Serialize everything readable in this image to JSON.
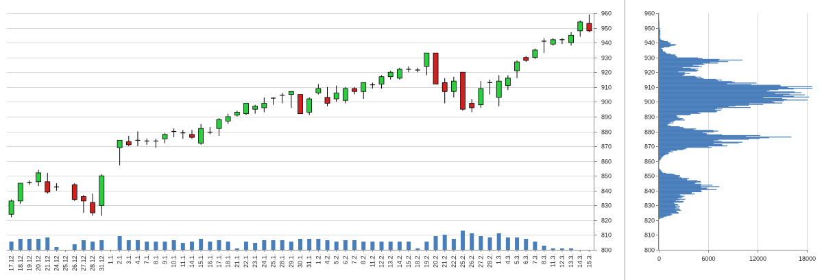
{
  "chart_data": [
    {
      "type": "candlestick",
      "ylim": [
        800,
        960
      ],
      "yticks": [
        "800",
        "810",
        "820",
        "830",
        "840",
        "850",
        "860",
        "870",
        "880",
        "890",
        "900",
        "910",
        "920",
        "930",
        "940",
        "950",
        "960"
      ],
      "volume_bars": "bottom overlay",
      "grid": true,
      "colors": {
        "up": "#2ecc40",
        "down": "#cc2222",
        "volume": "#4a7ebb",
        "grid": "#d9d9d9"
      },
      "categories": [
        "17.12.",
        "18.12.",
        "19.12.",
        "20.12.",
        "21.12.",
        "24.12.",
        "25.12.",
        "26.12.",
        "27.12.",
        "28.12.",
        "31.12.",
        "1.1.",
        "2.1.",
        "3.1.",
        "4.1.",
        "7.1.",
        "8.1.",
        "9.1.",
        "10.1.",
        "11.1.",
        "14.1.",
        "15.1.",
        "16.1.",
        "17.1.",
        "18.1.",
        "21.1.",
        "22.1.",
        "23.1.",
        "24.1.",
        "25.1.",
        "28.1.",
        "29.1.",
        "30.1.",
        "31.1.",
        "1.2.",
        "4.2.",
        "5.2.",
        "6.2.",
        "7.2.",
        "8.2.",
        "11.2.",
        "12.2.",
        "13.2.",
        "14.2.",
        "15.2.",
        "18.2.",
        "19.2.",
        "20.2.",
        "21.2.",
        "22.2.",
        "25.2.",
        "26.2.",
        "27.2.",
        "28.2.",
        "1.3.",
        "4.3.",
        "5.3.",
        "6.3.",
        "7.3.",
        "8.3.",
        "11.3.",
        "12.3.",
        "13.3.",
        "14.3.",
        "15.3."
      ],
      "ohlc": [
        [
          824,
          834,
          822,
          833
        ],
        [
          833,
          845,
          831,
          845
        ],
        [
          845,
          847,
          844,
          846
        ],
        [
          846,
          854,
          843,
          852
        ],
        [
          846,
          852,
          838,
          839
        ],
        [
          843,
          845,
          840,
          842
        ],
        null,
        [
          844,
          845,
          833,
          834
        ],
        [
          836,
          837,
          825,
          833
        ],
        [
          832,
          838,
          823,
          825
        ],
        [
          830,
          851,
          823,
          850
        ],
        null,
        [
          869,
          874,
          857,
          874
        ],
        [
          873,
          877,
          870,
          871
        ],
        [
          874,
          880,
          870,
          874
        ],
        [
          873,
          875,
          871,
          874
        ],
        [
          874,
          875,
          869,
          873
        ],
        [
          875,
          879,
          872,
          878
        ],
        [
          880,
          882,
          876,
          880
        ],
        [
          879,
          881,
          875,
          879
        ],
        [
          878,
          881,
          875,
          876
        ],
        [
          872,
          885,
          871,
          882
        ],
        [
          879,
          883,
          878,
          880
        ],
        [
          882,
          889,
          877,
          888
        ],
        [
          887,
          892,
          885,
          890
        ],
        [
          891,
          894,
          890,
          893
        ],
        [
          892,
          899,
          891,
          899
        ],
        [
          895,
          898,
          892,
          897
        ],
        [
          896,
          903,
          893,
          899
        ],
        [
          902,
          903,
          898,
          903
        ],
        [
          904,
          906,
          899,
          905
        ],
        [
          905,
          907,
          896,
          907
        ],
        [
          905,
          905,
          892,
          892
        ],
        [
          893,
          903,
          891,
          902
        ],
        [
          906,
          912,
          905,
          909
        ],
        [
          903,
          910,
          897,
          899
        ],
        [
          902,
          911,
          900,
          906
        ],
        [
          901,
          910,
          899,
          909
        ],
        [
          909,
          910,
          905,
          907
        ],
        [
          907,
          913,
          902,
          913
        ],
        [
          911,
          913,
          909,
          912
        ],
        [
          912,
          918,
          909,
          917
        ],
        [
          917,
          921,
          915,
          920
        ],
        [
          916,
          923,
          915,
          922
        ],
        [
          922,
          924,
          920,
          922
        ],
        [
          922,
          923,
          920,
          921
        ],
        [
          924,
          933,
          918,
          933
        ],
        [
          933,
          933,
          912,
          912
        ],
        [
          913,
          916,
          899,
          907
        ],
        [
          907,
          917,
          903,
          914
        ],
        [
          920,
          920,
          894,
          895
        ],
        [
          899,
          902,
          893,
          896
        ],
        [
          898,
          914,
          896,
          909
        ],
        [
          913,
          915,
          905,
          913
        ],
        [
          903,
          918,
          897,
          914
        ],
        [
          911,
          918,
          908,
          916
        ],
        [
          921,
          928,
          916,
          927
        ],
        [
          930,
          931,
          927,
          928
        ],
        [
          930,
          936,
          929,
          935
        ],
        [
          941,
          943,
          933,
          941
        ],
        [
          939,
          943,
          938,
          942
        ],
        [
          942,
          943,
          939,
          942
        ],
        [
          940,
          947,
          938,
          945
        ],
        [
          948,
          955,
          944,
          954
        ],
        [
          953,
          959,
          947,
          948
        ]
      ],
      "volume": [
        6,
        8,
        8,
        8,
        9,
        2,
        0,
        4,
        7,
        6,
        7,
        0,
        10,
        7,
        7,
        6,
        6,
        6,
        7,
        5,
        6,
        8,
        6,
        7,
        6,
        1,
        6,
        5,
        7,
        7,
        7,
        6,
        8,
        8,
        8,
        7,
        6,
        7,
        7,
        6,
        6,
        6,
        6,
        6,
        6,
        1,
        6,
        10,
        11,
        8,
        14,
        12,
        10,
        9,
        12,
        9,
        9,
        8,
        6,
        3,
        1,
        1,
        1,
        0,
        0
      ]
    },
    {
      "type": "bar",
      "orientation": "horizontal",
      "xlim": [
        0,
        18000
      ],
      "xticks": [
        "0",
        "6000",
        "12000",
        "18000"
      ],
      "ylim": [
        800,
        960
      ],
      "yticks": [
        "800",
        "810",
        "820",
        "830",
        "840",
        "850",
        "860",
        "870",
        "880",
        "890",
        "900",
        "910",
        "920",
        "930",
        "940",
        "950",
        "960"
      ],
      "color": "#4a7ebb",
      "profile_points": [
        [
          821,
          200
        ],
        [
          823,
          1500
        ],
        [
          825,
          2400
        ],
        [
          828,
          2600
        ],
        [
          831,
          2400
        ],
        [
          834,
          2800
        ],
        [
          837,
          3200
        ],
        [
          840,
          6500
        ],
        [
          842,
          6800
        ],
        [
          844,
          5500
        ],
        [
          846,
          4800
        ],
        [
          848,
          4000
        ],
        [
          850,
          2500
        ],
        [
          852,
          500
        ],
        [
          855,
          0
        ],
        [
          860,
          50
        ],
        [
          863,
          600
        ],
        [
          866,
          1500
        ],
        [
          868,
          3500
        ],
        [
          870,
          7500
        ],
        [
          872,
          9000
        ],
        [
          874,
          9200
        ],
        [
          876,
          14500
        ],
        [
          878,
          8000
        ],
        [
          880,
          6600
        ],
        [
          882,
          4200
        ],
        [
          884,
          1200
        ],
        [
          886,
          1800
        ],
        [
          888,
          3600
        ],
        [
          890,
          2400
        ],
        [
          892,
          4800
        ],
        [
          894,
          7500
        ],
        [
          896,
          10000
        ],
        [
          898,
          14800
        ],
        [
          900,
          15500
        ],
        [
          902,
          16500
        ],
        [
          904,
          16000
        ],
        [
          906,
          15000
        ],
        [
          908,
          14000
        ],
        [
          909,
          16500
        ],
        [
          910,
          16000
        ],
        [
          912,
          11000
        ],
        [
          914,
          8000
        ],
        [
          916,
          5000
        ],
        [
          918,
          3500
        ],
        [
          920,
          3000
        ],
        [
          921,
          6000
        ],
        [
          923,
          4000
        ],
        [
          925,
          6200
        ],
        [
          927,
          8000
        ],
        [
          928,
          9000
        ],
        [
          930,
          2800
        ],
        [
          932,
          1500
        ],
        [
          934,
          600
        ],
        [
          936,
          400
        ],
        [
          938,
          2000
        ],
        [
          940,
          1500
        ],
        [
          941,
          900
        ],
        [
          942,
          200
        ],
        [
          944,
          150
        ],
        [
          946,
          200
        ],
        [
          948,
          150
        ],
        [
          950,
          100
        ],
        [
          952,
          80
        ],
        [
          954,
          50
        ],
        [
          956,
          0
        ],
        [
          960,
          0
        ]
      ]
    }
  ]
}
